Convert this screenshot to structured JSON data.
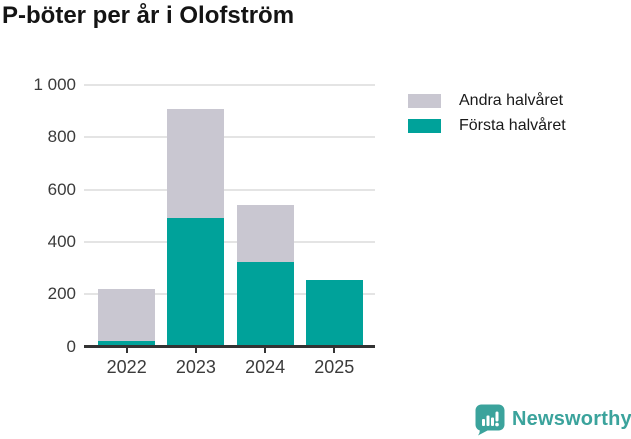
{
  "title": "P-böter per år i Olofström",
  "chart_data": {
    "type": "bar",
    "stacked": true,
    "title": "P-böter per år i Olofström",
    "categories": [
      "2022",
      "2023",
      "2024",
      "2025"
    ],
    "series": [
      {
        "name": "Första halvåret",
        "color": "#00A29A",
        "values": [
          20,
          490,
          325,
          255
        ]
      },
      {
        "name": "Andra halvåret",
        "color": "#C9C7D1",
        "values": [
          200,
          420,
          215,
          0
        ]
      }
    ],
    "xlabel": "",
    "ylabel": "",
    "ylim": [
      0,
      1000
    ],
    "yticks": [
      0,
      200,
      400,
      600,
      800,
      1000
    ],
    "ytick_labels": [
      "0",
      "200",
      "400",
      "600",
      "800",
      "1 000"
    ],
    "grid": true,
    "legend_position": "right-of-plot-top",
    "legend_order": [
      "Andra halvåret",
      "Första halvåret"
    ]
  },
  "branding": {
    "logo_text": "Newsworthy",
    "logo_color": "#3BA39C",
    "logo_icon": "speech-bubble-bar-chart-icon"
  },
  "colors": {
    "background": "#FFFFFF",
    "axis": "#333333",
    "gridline": "#E4E4E4",
    "title_text": "#141414",
    "tick_label_text": "#3B3B3B"
  }
}
